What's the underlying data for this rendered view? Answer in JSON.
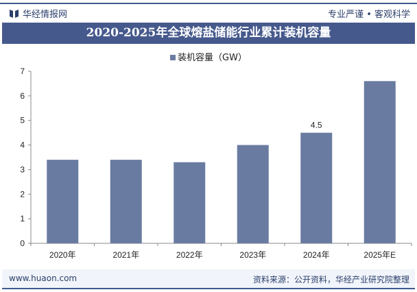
{
  "header": {
    "brand": "华经情报网",
    "slogan": "专业严谨 • 客观科学",
    "logo_icon": "book-icon"
  },
  "colors": {
    "bar": "#6a7ba1",
    "title_band": "#46598c",
    "accent": "#3f5a8c"
  },
  "chart_data": {
    "type": "bar",
    "title": "2020-2025年全球熔盐储能行业累计装机容量",
    "categories": [
      "2020年",
      "2021年",
      "2022年",
      "2023年",
      "2024年",
      "2025年E"
    ],
    "series": [
      {
        "name": "装机容量（GW）",
        "values": [
          3.4,
          3.4,
          3.3,
          4.0,
          4.5,
          6.6
        ]
      }
    ],
    "data_labels": [
      null,
      null,
      null,
      null,
      "4.5",
      null
    ],
    "ylim": [
      0,
      7
    ],
    "yticks": [
      0,
      1,
      2,
      3,
      4,
      5,
      6,
      7
    ],
    "grid": false,
    "legend": "top-center"
  },
  "footer": {
    "website": "www.huaon.com",
    "source": "资料来源：公开资料，华经产业研究院整理"
  }
}
